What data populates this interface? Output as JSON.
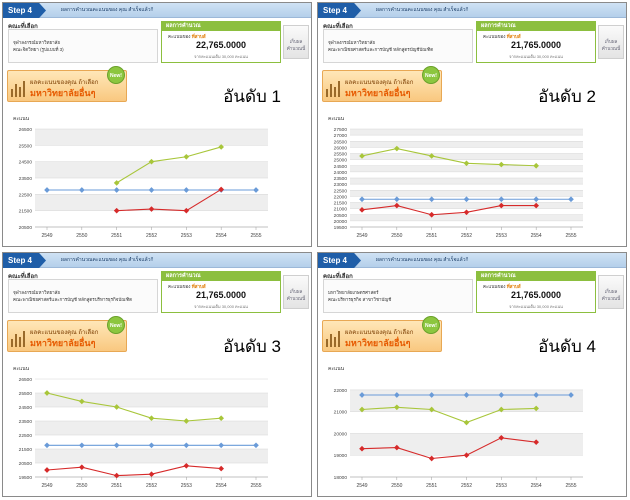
{
  "shared": {
    "step_label": "Step 4",
    "step_text": "ผลการคำนวณคะแนนของ คุณ สำเร็จแล้ว!!",
    "faculty_label": "คณะที่เลือก",
    "result_header": "ผลการคำนวณ",
    "result_label_prefix": "คะแนนของ",
    "result_label_name": "ที่สาบส์",
    "result_note": "จากคะแนนเต็ม 30,000 คะแนน",
    "side_button": "เก็บผล คำนวณนี้",
    "banner_line1": "ผลคะแนนของคุณ ถ้าเลือก",
    "banner_line2": "มหาวิทยาลัยอื่นๆ",
    "new_badge": "New!",
    "y_axis_label": "คะแนน"
  },
  "panels": [
    {
      "faculty_line1": "จุฬาลงกรณ์มหาวิทยาลัย",
      "faculty_line2": "คณะจิตวิทยา (รูปแบบที่ 3)",
      "score": "22,765.0000",
      "rank_text": "อันดับ 1"
    },
    {
      "faculty_line1": "จุฬาลงกรณ์มหาวิทยาลัย",
      "faculty_line2": "คณะพาณิชยศาสตร์และการบัญชี หลักสูตรบัญชีบัณฑิต",
      "score": "21,765.0000",
      "rank_text": "อันดับ 2"
    },
    {
      "faculty_line1": "จุฬาลงกรณ์มหาวิทยาลัย",
      "faculty_line2": "คณะพาณิชยศาสตร์และการบัญชี หลักสูตรบริหารธุรกิจบัณฑิต",
      "score": "21,765.0000",
      "rank_text": "อันดับ 3"
    },
    {
      "faculty_line1": "มหาวิทยาลัยเกษตรศาสตร์",
      "faculty_line2": "คณะบริหารธุรกิจ สาขาวิชาบัญชี",
      "score": "21,765.0000",
      "rank_text": "อันดับ 4"
    }
  ],
  "chart_data": [
    {
      "type": "line",
      "ylabel": "คะแนน",
      "categories": [
        "2549",
        "2550",
        "2551",
        "2552",
        "2553",
        "2554",
        "2555"
      ],
      "yticks": [
        20500,
        21500,
        22500,
        23500,
        24500,
        25500,
        26500
      ],
      "ylim": [
        20500,
        26500
      ],
      "series": [
        {
          "color": "#6a9bd8",
          "values": [
            22765,
            22765,
            22765,
            22765,
            22765,
            22765,
            22765
          ]
        },
        {
          "color": "#a8c63a",
          "values": [
            null,
            null,
            23200,
            24500,
            24800,
            25400,
            null
          ]
        },
        {
          "color": "#d62a2a",
          "values": [
            null,
            null,
            21500,
            21600,
            21500,
            22800,
            null
          ]
        }
      ]
    },
    {
      "type": "line",
      "ylabel": "คะแนน",
      "categories": [
        "2549",
        "2550",
        "2551",
        "2552",
        "2553",
        "2554",
        "2555"
      ],
      "yticks": [
        19500,
        20000,
        20500,
        21000,
        21500,
        22000,
        22500,
        23000,
        23500,
        24000,
        24500,
        25000,
        25500,
        26000,
        26500,
        27000,
        27500
      ],
      "ylim": [
        19500,
        27500
      ],
      "series": [
        {
          "color": "#6a9bd8",
          "values": [
            21765,
            21765,
            21765,
            21765,
            21765,
            21765,
            21765
          ]
        },
        {
          "color": "#a8c63a",
          "values": [
            25300,
            25900,
            25300,
            24700,
            24600,
            24500,
            null
          ]
        },
        {
          "color": "#d62a2a",
          "values": [
            20900,
            21250,
            20500,
            20700,
            21250,
            21250,
            null
          ]
        }
      ]
    },
    {
      "type": "line",
      "ylabel": "คะแนน",
      "categories": [
        "2549",
        "2550",
        "2551",
        "2552",
        "2553",
        "2554",
        "2555"
      ],
      "yticks": [
        19500,
        20500,
        21500,
        22500,
        23500,
        24500,
        25500,
        26500
      ],
      "ylim": [
        19500,
        26500
      ],
      "series": [
        {
          "color": "#6a9bd8",
          "values": [
            21765,
            21765,
            21765,
            21765,
            21765,
            21765,
            21765
          ]
        },
        {
          "color": "#a8c63a",
          "values": [
            25500,
            24900,
            24500,
            23700,
            23500,
            23700,
            null
          ]
        },
        {
          "color": "#d62a2a",
          "values": [
            20000,
            20200,
            19600,
            19700,
            20300,
            20100,
            null
          ]
        }
      ]
    },
    {
      "type": "line",
      "ylabel": "คะแนน",
      "categories": [
        "2549",
        "2550",
        "2551",
        "2552",
        "2553",
        "2554",
        "2555"
      ],
      "yticks": [
        18000,
        19000,
        20000,
        21000,
        22000
      ],
      "ylim": [
        18000,
        22500
      ],
      "series": [
        {
          "color": "#6a9bd8",
          "values": [
            21765,
            21765,
            21765,
            21765,
            21765,
            21765,
            21765
          ]
        },
        {
          "color": "#a8c63a",
          "values": [
            21100,
            21200,
            21100,
            20500,
            21100,
            21150,
            null
          ]
        },
        {
          "color": "#d62a2a",
          "values": [
            19300,
            19350,
            18850,
            19000,
            19800,
            19600,
            null
          ]
        }
      ]
    }
  ]
}
